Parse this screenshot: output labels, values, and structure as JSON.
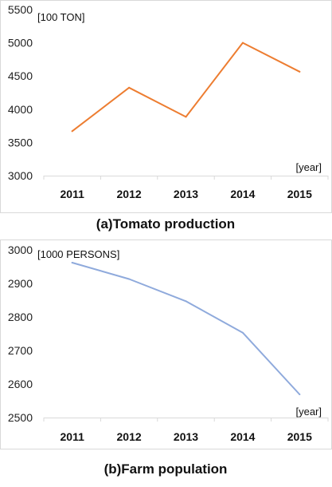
{
  "chart_data": [
    {
      "type": "line",
      "title": "",
      "caption": "(a)Tomato production",
      "unit_label": "[100 TON]",
      "xlabel": "[year]",
      "ylabel": "",
      "categories": [
        "2011",
        "2012",
        "2013",
        "2014",
        "2015"
      ],
      "yticks": [
        "3000",
        "3500",
        "4000",
        "4500",
        "5000",
        "5500"
      ],
      "ylim": [
        3000,
        5500
      ],
      "grid": false,
      "legend": "none",
      "series": [
        {
          "values": [
            3670,
            4325,
            3885,
            5000,
            4565
          ],
          "color": "#ED7D31"
        }
      ]
    },
    {
      "type": "line",
      "title": "",
      "caption": "(b)Farm population",
      "unit_label": "[1000 PERSONS]",
      "xlabel": "[year]",
      "ylabel": "",
      "categories": [
        "2011",
        "2012",
        "2013",
        "2014",
        "2015"
      ],
      "yticks": [
        "2500",
        "2600",
        "2700",
        "2800",
        "2900",
        "3000"
      ],
      "ylim": [
        2500,
        3000
      ],
      "grid": false,
      "legend": "none",
      "series": [
        {
          "values": [
            2962,
            2913,
            2847,
            2753,
            2569
          ],
          "color": "#8FAADC"
        }
      ]
    }
  ]
}
